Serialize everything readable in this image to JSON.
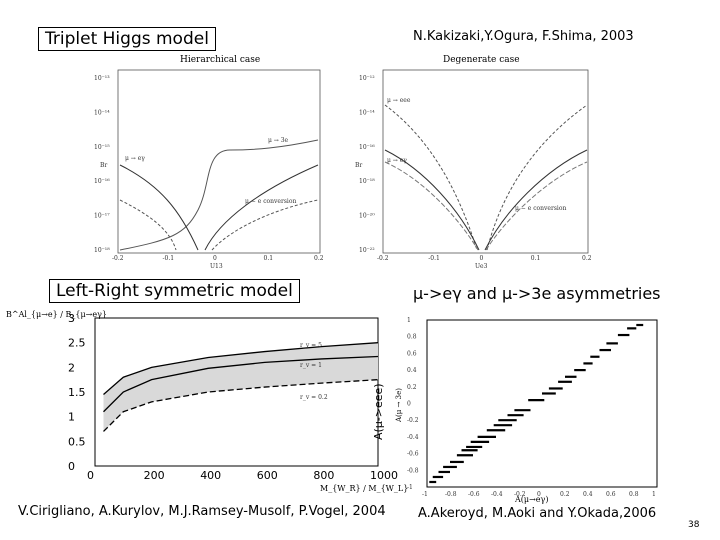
{
  "slide": {
    "triplet_title": "Triplet Higgs model",
    "triplet_citation": "N.Kakizaki,Y.Ogura, F.Shima, 2003",
    "lr_title": "Left-Right symmetric model",
    "asym_title": "μ->eγ and μ->3e asymmetries",
    "lr_citation": "V.Cirigliano, A.Kurylov, M.J.Ramsey-Musolf, P.Vogel, 2004",
    "asym_citation": "A.Akeroyd, M.Aoki and Y.Okada,2006",
    "page_number": "38",
    "asym_ylabel_outer": "A(μ->eee)"
  },
  "chart_data": [
    {
      "type": "line",
      "title": "Hierarchical case",
      "xlabel": "U13",
      "ylabel": "Br",
      "xlim": [
        -0.2,
        0.2
      ],
      "x_ticks": [
        "-0.2",
        "-0.1",
        "0",
        "0.1",
        "0.2"
      ],
      "y_ticks": [
        "10⁻¹³",
        "10⁻¹⁴",
        "10⁻¹⁵",
        "10⁻¹⁶",
        "10⁻¹⁷",
        "10⁻¹⁸"
      ],
      "series": [
        {
          "name": "μ → 3e",
          "x": [
            -0.2,
            -0.1,
            0.0,
            0.02,
            0.1,
            0.2
          ],
          "y": [
            1e-17,
            3e-17,
            5e-16,
            5e-15,
            7e-15,
            1e-14
          ]
        },
        {
          "name": "μ → eγ",
          "x": [
            -0.2,
            -0.1,
            -0.02,
            0.0,
            0.1,
            0.2
          ],
          "y": [
            2e-15,
            5e-16,
            1e-18,
            2e-17,
            4e-16,
            2e-15
          ]
        },
        {
          "name": "μ − e conversion",
          "x": [
            -0.2,
            -0.1,
            -0.03,
            0.0,
            0.1,
            0.2
          ],
          "y": [
            5e-16,
            1e-16,
            1e-18,
            5e-18,
            1e-16,
            5e-16
          ]
        }
      ]
    },
    {
      "type": "line",
      "title": "Degenerate case",
      "xlabel": "Ue3",
      "ylabel": "Br",
      "xlim": [
        -0.2,
        0.2
      ],
      "x_ticks": [
        "-0.2",
        "-0.1",
        "0",
        "0.1",
        "0.2"
      ],
      "y_ticks": [
        "10⁻¹²",
        "10⁻¹⁴",
        "10⁻¹⁶",
        "10⁻¹⁸",
        "10⁻²⁰",
        "10⁻²²"
      ],
      "series": [
        {
          "name": "μ → eee",
          "x": [
            -0.2,
            -0.1,
            0.0,
            0.1,
            0.2
          ],
          "y": [
            1e-13,
            1e-15,
            1e-21,
            1e-15,
            1e-13
          ]
        },
        {
          "name": "μ → eγ",
          "x": [
            -0.2,
            -0.1,
            0.0,
            0.1,
            0.2
          ],
          "y": [
            1e-15,
            1e-17,
            1e-22,
            1e-17,
            1e-15
          ]
        },
        {
          "name": "μ − e conversion",
          "x": [
            -0.2,
            -0.1,
            0.0,
            0.1,
            0.2
          ],
          "y": [
            3e-16,
            3e-18,
            1e-22,
            3e-18,
            3e-16
          ]
        }
      ]
    },
    {
      "type": "area",
      "title": "",
      "ylabel": "B^Al_{μ→e} / B_{μ→eγ}",
      "xlabel": "M_{W_R} / M_{W_L}",
      "xlim": [
        0,
        1000
      ],
      "ylim": [
        0,
        3
      ],
      "x_ticks": [
        "0",
        "200",
        "400",
        "600",
        "800",
        "1000"
      ],
      "y_ticks": [
        "0",
        "0.5",
        "1",
        "1.5",
        "2",
        "2.5",
        "3"
      ],
      "x": [
        30,
        100,
        200,
        400,
        600,
        800,
        1000
      ],
      "series": [
        {
          "name": "r_v = 5",
          "values": [
            1.45,
            1.8,
            2.0,
            2.2,
            2.32,
            2.42,
            2.5
          ]
        },
        {
          "name": "r_v = 1",
          "values": [
            1.1,
            1.5,
            1.75,
            1.98,
            2.1,
            2.17,
            2.22
          ]
        },
        {
          "name": "r_v = 0.2",
          "values": [
            0.7,
            1.1,
            1.3,
            1.5,
            1.6,
            1.68,
            1.75
          ]
        }
      ]
    },
    {
      "type": "scatter",
      "title": "",
      "xlabel": "A(μ→eγ)",
      "ylabel": "A(μ → 3e)",
      "xlim": [
        -1,
        1
      ],
      "ylim": [
        -1,
        1
      ],
      "x_ticks": [
        "-1",
        "-0.8",
        "-0.6",
        "-0.4",
        "-0.2",
        "0",
        "0.2",
        "0.4",
        "0.6",
        "0.8",
        "1"
      ],
      "y_ticks": [
        "1",
        "0.8",
        "0.6",
        "0.4",
        "0.2",
        "0",
        "-0.2",
        "-0.4",
        "-0.6",
        "-0.8",
        "-1"
      ],
      "points": [
        {
          "x0": -0.98,
          "x1": -0.92,
          "y": -0.94
        },
        {
          "x0": -0.95,
          "x1": -0.86,
          "y": -0.88
        },
        {
          "x0": -0.9,
          "x1": -0.8,
          "y": -0.82
        },
        {
          "x0": -0.86,
          "x1": -0.74,
          "y": -0.76
        },
        {
          "x0": -0.8,
          "x1": -0.68,
          "y": -0.7
        },
        {
          "x0": -0.74,
          "x1": -0.6,
          "y": -0.62
        },
        {
          "x0": -0.7,
          "x1": -0.56,
          "y": -0.56
        },
        {
          "x0": -0.66,
          "x1": -0.52,
          "y": -0.52
        },
        {
          "x0": -0.62,
          "x1": -0.46,
          "y": -0.46
        },
        {
          "x0": -0.56,
          "x1": -0.4,
          "y": -0.4
        },
        {
          "x0": -0.48,
          "x1": -0.32,
          "y": -0.32
        },
        {
          "x0": -0.42,
          "x1": -0.26,
          "y": -0.26
        },
        {
          "x0": -0.38,
          "x1": -0.22,
          "y": -0.2
        },
        {
          "x0": -0.3,
          "x1": -0.16,
          "y": -0.14
        },
        {
          "x0": -0.24,
          "x1": -0.1,
          "y": -0.08
        },
        {
          "x0": -0.12,
          "x1": 0.02,
          "y": 0.04
        },
        {
          "x0": 0.0,
          "x1": 0.12,
          "y": 0.12
        },
        {
          "x0": 0.06,
          "x1": 0.18,
          "y": 0.18
        },
        {
          "x0": 0.14,
          "x1": 0.26,
          "y": 0.26
        },
        {
          "x0": 0.2,
          "x1": 0.3,
          "y": 0.32
        },
        {
          "x0": 0.28,
          "x1": 0.38,
          "y": 0.4
        },
        {
          "x0": 0.36,
          "x1": 0.44,
          "y": 0.48
        },
        {
          "x0": 0.42,
          "x1": 0.5,
          "y": 0.56
        },
        {
          "x0": 0.5,
          "x1": 0.6,
          "y": 0.64
        },
        {
          "x0": 0.56,
          "x1": 0.66,
          "y": 0.72
        },
        {
          "x0": 0.66,
          "x1": 0.76,
          "y": 0.82
        },
        {
          "x0": 0.74,
          "x1": 0.82,
          "y": 0.9
        },
        {
          "x0": 0.82,
          "x1": 0.88,
          "y": 0.94
        }
      ]
    }
  ]
}
